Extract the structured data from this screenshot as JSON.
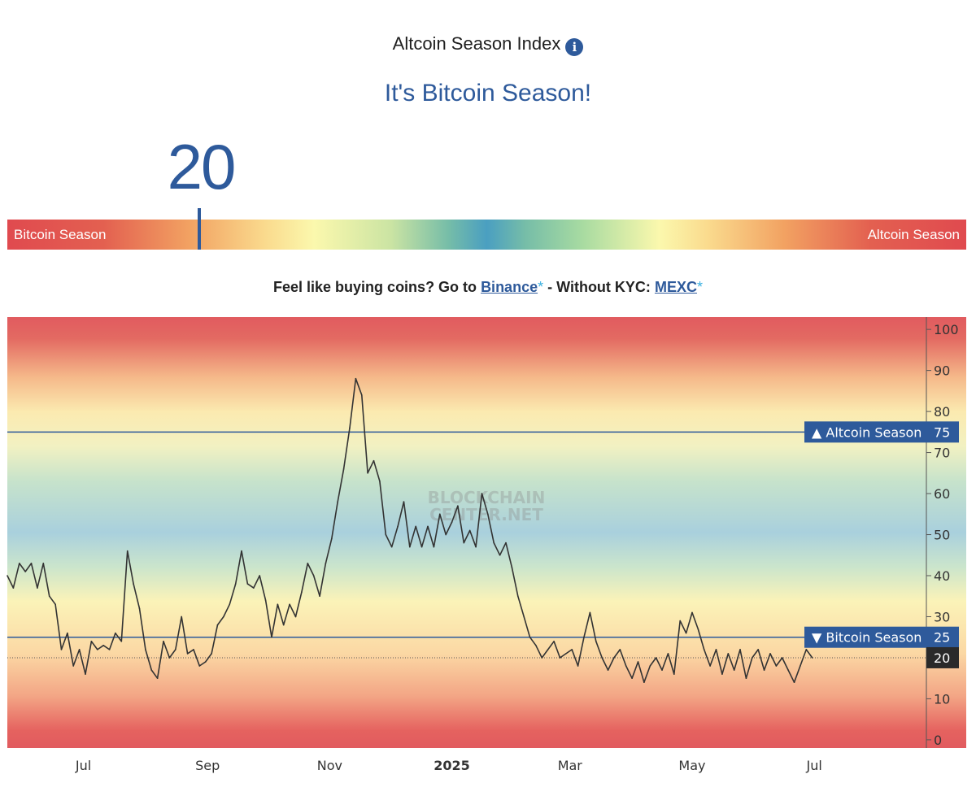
{
  "header": {
    "title": "Altcoin Season Index",
    "info_icon": "i",
    "season_message": "It's Bitcoin Season!",
    "current_value": "20"
  },
  "gauge": {
    "left_label": "Bitcoin Season",
    "right_label": "Altcoin Season",
    "value": 20,
    "min": 0,
    "max": 100
  },
  "promo": {
    "prefix": "Feel like buying coins? Go to",
    "link1": "Binance",
    "star": "*",
    "middle": "- Without KYC:",
    "link2": "MEXC"
  },
  "colors": {
    "accent": "#2e5a9b",
    "current_tag": "#2a2a2a",
    "line": "#333333"
  },
  "chart_data": {
    "type": "line",
    "watermark": [
      "BLOCKCHAIN",
      "CENTER.NET"
    ],
    "ylim": [
      -2,
      103
    ],
    "yticks": [
      0,
      10,
      20,
      30,
      40,
      50,
      60,
      70,
      80,
      90,
      100
    ],
    "xlim": [
      "2024-05-24",
      "2025-08-26"
    ],
    "x_ticks": [
      {
        "date": "2024-07-01",
        "label": "Jul",
        "bold": false
      },
      {
        "date": "2024-09-01",
        "label": "Sep",
        "bold": false
      },
      {
        "date": "2024-11-01",
        "label": "Nov",
        "bold": false
      },
      {
        "date": "2025-01-01",
        "label": "2025",
        "bold": true
      },
      {
        "date": "2025-03-01",
        "label": "Mar",
        "bold": false
      },
      {
        "date": "2025-05-01",
        "label": "May",
        "bold": false
      },
      {
        "date": "2025-07-01",
        "label": "Jul",
        "bold": false
      }
    ],
    "thresholds": [
      {
        "label": "Altcoin Season",
        "value": 75,
        "arrow": "▲"
      },
      {
        "label": "Bitcoin Season",
        "value": 25,
        "arrow": "▼"
      }
    ],
    "current": {
      "value": 20,
      "label": "20"
    },
    "series": [
      {
        "values": [
          [
            "2024-05-24",
            40
          ],
          [
            "2024-05-27",
            37
          ],
          [
            "2024-05-30",
            43
          ],
          [
            "2024-06-02",
            41
          ],
          [
            "2024-06-05",
            43
          ],
          [
            "2024-06-08",
            37
          ],
          [
            "2024-06-11",
            43
          ],
          [
            "2024-06-14",
            35
          ],
          [
            "2024-06-17",
            33
          ],
          [
            "2024-06-20",
            22
          ],
          [
            "2024-06-23",
            26
          ],
          [
            "2024-06-26",
            18
          ],
          [
            "2024-06-29",
            22
          ],
          [
            "2024-07-02",
            16
          ],
          [
            "2024-07-05",
            24
          ],
          [
            "2024-07-08",
            22
          ],
          [
            "2024-07-11",
            23
          ],
          [
            "2024-07-14",
            22
          ],
          [
            "2024-07-17",
            26
          ],
          [
            "2024-07-20",
            24
          ],
          [
            "2024-07-23",
            46
          ],
          [
            "2024-07-26",
            38
          ],
          [
            "2024-07-29",
            32
          ],
          [
            "2024-08-01",
            22
          ],
          [
            "2024-08-04",
            17
          ],
          [
            "2024-08-07",
            15
          ],
          [
            "2024-08-10",
            24
          ],
          [
            "2024-08-13",
            20
          ],
          [
            "2024-08-16",
            22
          ],
          [
            "2024-08-19",
            30
          ],
          [
            "2024-08-22",
            21
          ],
          [
            "2024-08-25",
            22
          ],
          [
            "2024-08-28",
            18
          ],
          [
            "2024-08-31",
            19
          ],
          [
            "2024-09-03",
            21
          ],
          [
            "2024-09-06",
            28
          ],
          [
            "2024-09-09",
            30
          ],
          [
            "2024-09-12",
            33
          ],
          [
            "2024-09-15",
            38
          ],
          [
            "2024-09-18",
            46
          ],
          [
            "2024-09-21",
            38
          ],
          [
            "2024-09-24",
            37
          ],
          [
            "2024-09-27",
            40
          ],
          [
            "2024-09-30",
            34
          ],
          [
            "2024-10-03",
            25
          ],
          [
            "2024-10-06",
            33
          ],
          [
            "2024-10-09",
            28
          ],
          [
            "2024-10-12",
            33
          ],
          [
            "2024-10-15",
            30
          ],
          [
            "2024-10-18",
            36
          ],
          [
            "2024-10-21",
            43
          ],
          [
            "2024-10-24",
            40
          ],
          [
            "2024-10-27",
            35
          ],
          [
            "2024-10-30",
            43
          ],
          [
            "2024-11-02",
            49
          ],
          [
            "2024-11-05",
            58
          ],
          [
            "2024-11-08",
            66
          ],
          [
            "2024-11-11",
            76
          ],
          [
            "2024-11-14",
            88
          ],
          [
            "2024-11-17",
            84
          ],
          [
            "2024-11-20",
            65
          ],
          [
            "2024-11-23",
            68
          ],
          [
            "2024-11-26",
            63
          ],
          [
            "2024-11-29",
            50
          ],
          [
            "2024-12-02",
            47
          ],
          [
            "2024-12-05",
            52
          ],
          [
            "2024-12-08",
            58
          ],
          [
            "2024-12-11",
            47
          ],
          [
            "2024-12-14",
            52
          ],
          [
            "2024-12-17",
            47
          ],
          [
            "2024-12-20",
            52
          ],
          [
            "2024-12-23",
            47
          ],
          [
            "2024-12-26",
            55
          ],
          [
            "2024-12-29",
            50
          ],
          [
            "2025-01-01",
            53
          ],
          [
            "2025-01-04",
            57
          ],
          [
            "2025-01-07",
            48
          ],
          [
            "2025-01-10",
            51
          ],
          [
            "2025-01-13",
            47
          ],
          [
            "2025-01-16",
            60
          ],
          [
            "2025-01-19",
            55
          ],
          [
            "2025-01-22",
            48
          ],
          [
            "2025-01-25",
            45
          ],
          [
            "2025-01-28",
            48
          ],
          [
            "2025-01-31",
            42
          ],
          [
            "2025-02-03",
            35
          ],
          [
            "2025-02-06",
            30
          ],
          [
            "2025-02-09",
            25
          ],
          [
            "2025-02-12",
            23
          ],
          [
            "2025-02-15",
            20
          ],
          [
            "2025-02-18",
            22
          ],
          [
            "2025-02-21",
            24
          ],
          [
            "2025-02-24",
            20
          ],
          [
            "2025-02-27",
            21
          ],
          [
            "2025-03-02",
            22
          ],
          [
            "2025-03-05",
            18
          ],
          [
            "2025-03-08",
            25
          ],
          [
            "2025-03-11",
            31
          ],
          [
            "2025-03-14",
            24
          ],
          [
            "2025-03-17",
            20
          ],
          [
            "2025-03-20",
            17
          ],
          [
            "2025-03-23",
            20
          ],
          [
            "2025-03-26",
            22
          ],
          [
            "2025-03-29",
            18
          ],
          [
            "2025-04-01",
            15
          ],
          [
            "2025-04-04",
            19
          ],
          [
            "2025-04-07",
            14
          ],
          [
            "2025-04-10",
            18
          ],
          [
            "2025-04-13",
            20
          ],
          [
            "2025-04-16",
            17
          ],
          [
            "2025-04-19",
            21
          ],
          [
            "2025-04-22",
            16
          ],
          [
            "2025-04-25",
            29
          ],
          [
            "2025-04-28",
            26
          ],
          [
            "2025-05-01",
            31
          ],
          [
            "2025-05-04",
            27
          ],
          [
            "2025-05-07",
            22
          ],
          [
            "2025-05-10",
            18
          ],
          [
            "2025-05-13",
            22
          ],
          [
            "2025-05-16",
            16
          ],
          [
            "2025-05-19",
            21
          ],
          [
            "2025-05-22",
            17
          ],
          [
            "2025-05-25",
            22
          ],
          [
            "2025-05-28",
            15
          ],
          [
            "2025-05-31",
            20
          ],
          [
            "2025-06-03",
            22
          ],
          [
            "2025-06-06",
            17
          ],
          [
            "2025-06-09",
            21
          ],
          [
            "2025-06-12",
            18
          ],
          [
            "2025-06-15",
            20
          ],
          [
            "2025-06-18",
            17
          ],
          [
            "2025-06-21",
            14
          ],
          [
            "2025-06-24",
            18
          ],
          [
            "2025-06-27",
            22
          ],
          [
            "2025-06-30",
            20
          ]
        ]
      }
    ]
  }
}
